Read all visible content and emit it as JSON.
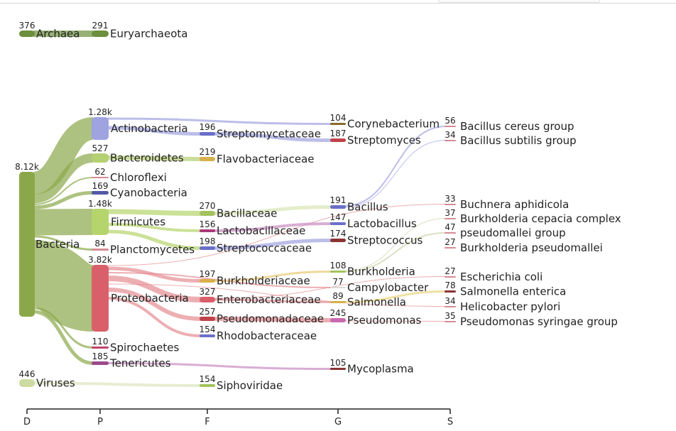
{
  "axis": {
    "levels": [
      {
        "label": "D",
        "x": 38
      },
      {
        "label": "P",
        "x": 141
      },
      {
        "label": "F",
        "x": 292
      },
      {
        "label": "G",
        "x": 476
      },
      {
        "label": "S",
        "x": 634
      }
    ]
  },
  "colors": {
    "archaea": "#6b8f3a",
    "bacteria": "#8aa84a",
    "actinobacteria": "#9fa3e0",
    "bacteroidetes": "#b5cf73",
    "chloroflexi": "#d58a94",
    "cyanobacteria": "#5358a5",
    "firmicutes": "#b5d46b",
    "proteobacteria": "#d9606a",
    "spirochaetes": "#c1436a",
    "tenericutes": "#9c4a8c",
    "viruses": "#ccdba1",
    "family_purple": "#6a6fc8",
    "family_gold": "#d6b04a",
    "family_green": "#a3c25e",
    "family_magenta": "#a8397a",
    "family_red": "#c0424a",
    "family_maroon": "#8a3434"
  },
  "nodes": [
    {
      "id": "archaea",
      "name": "Archaea",
      "value": "376",
      "level": 0,
      "y": 43,
      "h": 9,
      "color": "#6b8f3a"
    },
    {
      "id": "euryarchaeota",
      "name": "Euryarchaeota",
      "value": "291",
      "level": 1,
      "y": 43,
      "h": 9,
      "color": "#6b8f3a"
    },
    {
      "id": "bacteria",
      "name": "Bacteria",
      "value": "8.12k",
      "level": 0,
      "y": 242,
      "h": 204,
      "color": "#8aa84a"
    },
    {
      "id": "actinobacteria",
      "name": "Actinobacteria",
      "value": "1.28k",
      "level": 1,
      "y": 165,
      "h": 32,
      "color": "#9fa3e0"
    },
    {
      "id": "bacteroidetes",
      "name": "Bacteroidetes",
      "value": "527",
      "level": 1,
      "y": 216,
      "h": 13,
      "color": "#b5cf73"
    },
    {
      "id": "chloroflexi",
      "name": "Chloroflexi",
      "value": "62",
      "level": 1,
      "y": 249,
      "h": 2,
      "color": "#d58a94"
    },
    {
      "id": "cyanobacteria",
      "name": "Cyanobacteria",
      "value": "169",
      "level": 1,
      "y": 269,
      "h": 5,
      "color": "#5358a5"
    },
    {
      "id": "firmicutes",
      "name": "Firmicutes",
      "value": "1.48k",
      "level": 1,
      "y": 294,
      "h": 37,
      "color": "#b5d46b"
    },
    {
      "id": "planctomycetes",
      "name": "Planctomycetes",
      "value": "84",
      "level": 1,
      "y": 350,
      "h": 3,
      "color": "#d58a94"
    },
    {
      "id": "proteobacteria",
      "name": "Proteobacteria",
      "value": "3.82k",
      "level": 1,
      "y": 373,
      "h": 94,
      "color": "#d9606a"
    },
    {
      "id": "spirochaetes",
      "name": "Spirochaetes",
      "value": "110",
      "level": 1,
      "y": 488,
      "h": 3,
      "color": "#c1436a"
    },
    {
      "id": "tenericutes",
      "name": "Tenericutes",
      "value": "185",
      "level": 1,
      "y": 509,
      "h": 5,
      "color": "#9c4a8c"
    },
    {
      "id": "viruses",
      "name": "Viruses",
      "value": "446",
      "level": 0,
      "y": 534,
      "h": 11,
      "color": "#ccdba1"
    },
    {
      "id": "streptomycetaceae",
      "name": "Streptomycetaceae",
      "value": "196",
      "level": 2,
      "y": 186,
      "h": 5,
      "color": "#6a6fc8"
    },
    {
      "id": "flavobacteriaceae",
      "name": "Flavobacteriaceae",
      "value": "219",
      "level": 2,
      "y": 221,
      "h": 6,
      "color": "#d6b04a"
    },
    {
      "id": "bacillaceae",
      "name": "Bacillaceae",
      "value": "270",
      "level": 2,
      "y": 297,
      "h": 7,
      "color": "#a3c25e"
    },
    {
      "id": "lactobacillaceae",
      "name": "Lactobacillaceae",
      "value": "156",
      "level": 2,
      "y": 323,
      "h": 4,
      "color": "#a8397a"
    },
    {
      "id": "streptococcaceae",
      "name": "Streptococcaceae",
      "value": "198",
      "level": 2,
      "y": 347,
      "h": 5,
      "color": "#6a6fc8"
    },
    {
      "id": "burkholderiaceae",
      "name": "Burkholderiaceae",
      "value": "197",
      "level": 2,
      "y": 393,
      "h": 5,
      "color": "#d6b04a"
    },
    {
      "id": "enterobacteriaceae",
      "name": "Enterobacteriaceae",
      "value": "327",
      "level": 2,
      "y": 418,
      "h": 8,
      "color": "#d9606a"
    },
    {
      "id": "pseudomonadaceae",
      "name": "Pseudomonadaceae",
      "value": "257",
      "level": 2,
      "y": 446,
      "h": 6,
      "color": "#c0424a"
    },
    {
      "id": "rhodobacteraceae",
      "name": "Rhodobacteraceae",
      "value": "154",
      "level": 2,
      "y": 471,
      "h": 4,
      "color": "#6a6fc8"
    },
    {
      "id": "siphoviridae",
      "name": "Siphoviridae",
      "value": "154",
      "level": 2,
      "y": 541,
      "h": 4,
      "color": "#a3c25e"
    },
    {
      "id": "corynebacterium",
      "name": "Corynebacterium",
      "value": "104",
      "level": 3,
      "y": 173,
      "h": 3,
      "color": "#8a6a2a"
    },
    {
      "id": "streptomyces",
      "name": "Streptomyces",
      "value": "187",
      "level": 3,
      "y": 195,
      "h": 5,
      "color": "#c0424a"
    },
    {
      "id": "bacillus",
      "name": "Bacillus",
      "value": "191",
      "level": 3,
      "y": 289,
      "h": 5,
      "color": "#6a6fc8"
    },
    {
      "id": "lactobacillus",
      "name": "Lactobacillus",
      "value": "147",
      "level": 3,
      "y": 313,
      "h": 4,
      "color": "#6a6fc8"
    },
    {
      "id": "streptococcus",
      "name": "Streptococcus",
      "value": "174",
      "level": 3,
      "y": 336,
      "h": 5,
      "color": "#8a3434"
    },
    {
      "id": "burkholderia",
      "name": "Burkholderia",
      "value": "108",
      "level": 3,
      "y": 381,
      "h": 3,
      "color": "#a3c25e"
    },
    {
      "id": "campylobacter",
      "name": "Campylobacter",
      "value": "77",
      "level": 3,
      "y": 404,
      "h": 2,
      "color": "#d9d9d9"
    },
    {
      "id": "salmonella",
      "name": "Salmonella",
      "value": "89",
      "level": 3,
      "y": 424,
      "h": 3,
      "color": "#d6b04a"
    },
    {
      "id": "pseudomonas",
      "name": "Pseudomonas",
      "value": "245",
      "level": 3,
      "y": 448,
      "h": 6,
      "color": "#c969b0"
    },
    {
      "id": "mycoplasma",
      "name": "Mycoplasma",
      "value": "105",
      "level": 3,
      "y": 518,
      "h": 3,
      "color": "#8a3434"
    },
    {
      "id": "bacillus-cereus",
      "name": "Bacillus cereus group",
      "value": "56",
      "level": 4,
      "y": 177,
      "h": 2,
      "color": "#d58a94"
    },
    {
      "id": "bacillus-subtilis",
      "name": "Bacillus subtilis group",
      "value": "34",
      "level": 4,
      "y": 197,
      "h": 1,
      "color": "#d58a94"
    },
    {
      "id": "buchnera",
      "name": "Buchnera aphidicola",
      "value": "33",
      "level": 4,
      "y": 287,
      "h": 1,
      "color": "#d58a94"
    },
    {
      "id": "burkholderia-cepacia",
      "name": "Burkholderia cepacia complex",
      "value": "37",
      "level": 4,
      "y": 307,
      "h": 1,
      "color": "#d58a94"
    },
    {
      "id": "pseudomallei-group",
      "name": "pseudomallei group",
      "value": "47",
      "level": 4,
      "y": 327,
      "h": 2,
      "color": "#d58a94"
    },
    {
      "id": "burkholderia-pseudomallei",
      "name": "Burkholderia pseudomallei",
      "value": "27",
      "level": 4,
      "y": 348,
      "h": 1,
      "color": "#d58a94"
    },
    {
      "id": "escherichia-coli",
      "name": "Escherichia coli",
      "value": "27",
      "level": 4,
      "y": 389,
      "h": 1,
      "color": "#d58a94"
    },
    {
      "id": "salmonella-enterica",
      "name": "Salmonella enterica",
      "value": "78",
      "level": 4,
      "y": 409,
      "h": 3,
      "color": "#8a3434"
    },
    {
      "id": "helicobacter-pylori",
      "name": "Helicobacter pylori",
      "value": "34",
      "level": 4,
      "y": 431,
      "h": 1,
      "color": "#d58a94"
    },
    {
      "id": "pseudomonas-syringae",
      "name": "Pseudomonas syringae group",
      "value": "35",
      "level": 4,
      "y": 452,
      "h": 1,
      "color": "#d58a94"
    }
  ],
  "links": [
    {
      "from": "archaea",
      "to": "euryarchaeota",
      "fy": 47.5,
      "ty": 47.5,
      "w": 9,
      "color": "#6b8f3a"
    },
    {
      "from": "bacteria",
      "to": "actinobacteria",
      "fy": 258,
      "ty": 181,
      "w": 32,
      "color": "#8aa84a"
    },
    {
      "from": "bacteria",
      "to": "bacteroidetes",
      "fy": 280,
      "ty": 222.5,
      "w": 13,
      "color": "#8aa84a"
    },
    {
      "from": "bacteria",
      "to": "chloroflexi",
      "fy": 288,
      "ty": 250,
      "w": 2,
      "color": "#8aa84a"
    },
    {
      "from": "bacteria",
      "to": "cyanobacteria",
      "fy": 292,
      "ty": 271.5,
      "w": 5,
      "color": "#8aa84a"
    },
    {
      "from": "bacteria",
      "to": "firmicutes",
      "fy": 313,
      "ty": 312.5,
      "w": 37,
      "color": "#8aa84a"
    },
    {
      "from": "bacteria",
      "to": "planctomycetes",
      "fy": 333,
      "ty": 351.5,
      "w": 3,
      "color": "#8aa84a"
    },
    {
      "from": "bacteria",
      "to": "proteobacteria",
      "fy": 385,
      "ty": 420,
      "w": 94,
      "color": "#8aa84a"
    },
    {
      "from": "bacteria",
      "to": "spirochaetes",
      "fy": 434,
      "ty": 489.5,
      "w": 3,
      "color": "#8aa84a"
    },
    {
      "from": "bacteria",
      "to": "tenericutes",
      "fy": 439,
      "ty": 511.5,
      "w": 5,
      "color": "#8aa84a"
    },
    {
      "from": "actinobacteria",
      "to": "streptomycetaceae",
      "fy": 180,
      "ty": 188.5,
      "w": 5,
      "color": "#9fa3e0"
    },
    {
      "from": "actinobacteria",
      "to": "corynebacterium",
      "fy": 167,
      "ty": 174.5,
      "w": 3,
      "color": "#9fa3e0"
    },
    {
      "from": "bacteroidetes",
      "to": "flavobacteriaceae",
      "fy": 222,
      "ty": 224,
      "w": 6,
      "color": "#b5cf73"
    },
    {
      "from": "firmicutes",
      "to": "bacillaceae",
      "fy": 298,
      "ty": 300.5,
      "w": 7,
      "color": "#b5d46b"
    },
    {
      "from": "firmicutes",
      "to": "lactobacillaceae",
      "fy": 316,
      "ty": 325,
      "w": 4,
      "color": "#b5d46b"
    },
    {
      "from": "firmicutes",
      "to": "streptococcaceae",
      "fy": 326,
      "ty": 349.5,
      "w": 5,
      "color": "#b5d46b"
    },
    {
      "from": "proteobacteria",
      "to": "burkholderiaceae",
      "fy": 378,
      "ty": 395.5,
      "w": 5,
      "color": "#e58b91"
    },
    {
      "from": "proteobacteria",
      "to": "enterobacteriaceae",
      "fy": 392,
      "ty": 422,
      "w": 8,
      "color": "#e58b91"
    },
    {
      "from": "proteobacteria",
      "to": "pseudomonadaceae",
      "fy": 408,
      "ty": 449,
      "w": 6,
      "color": "#e58b91"
    },
    {
      "from": "proteobacteria",
      "to": "rhodobacteraceae",
      "fy": 420,
      "ty": 473,
      "w": 4,
      "color": "#e58b91"
    },
    {
      "from": "proteobacteria",
      "to": "campylobacter",
      "fy": 384,
      "ty": 405,
      "w": 2,
      "color": "#e58b91"
    },
    {
      "from": "proteobacteria",
      "to": "buchnera",
      "fy": 374,
      "ty": 287.5,
      "w": 1,
      "color": "#e58b91"
    },
    {
      "from": "proteobacteria",
      "to": "helicobacter-pylori",
      "fy": 400,
      "ty": 431.5,
      "w": 1,
      "color": "#e58b91"
    },
    {
      "from": "tenericutes",
      "to": "mycoplasma",
      "fy": 511.5,
      "ty": 519.5,
      "w": 3,
      "color": "#c98ac0"
    },
    {
      "from": "viruses",
      "to": "siphoviridae",
      "fy": 539.5,
      "ty": 543,
      "w": 4,
      "color": "#dbe6bd"
    },
    {
      "from": "streptomycetaceae",
      "to": "streptomyces",
      "fy": 188.5,
      "ty": 197.5,
      "w": 5,
      "color": "#9fa3e0"
    },
    {
      "from": "bacillaceae",
      "to": "bacillus",
      "fy": 300.5,
      "ty": 291.5,
      "w": 5,
      "color": "#d8e6b3"
    },
    {
      "from": "lactobacillaceae",
      "to": "lactobacillus",
      "fy": 325,
      "ty": 315,
      "w": 4,
      "color": "#c98ac0"
    },
    {
      "from": "streptococcaceae",
      "to": "streptococcus",
      "fy": 349.5,
      "ty": 338.5,
      "w": 5,
      "color": "#9fa3e0"
    },
    {
      "from": "burkholderiaceae",
      "to": "burkholderia",
      "fy": 395.5,
      "ty": 382.5,
      "w": 3,
      "color": "#e8c872"
    },
    {
      "from": "enterobacteriaceae",
      "to": "salmonella",
      "fy": 422,
      "ty": 425.5,
      "w": 3,
      "color": "#e58b91"
    },
    {
      "from": "enterobacteriaceae",
      "to": "escherichia-coli",
      "fy": 420,
      "ty": 389.5,
      "w": 1,
      "color": "#e58b91"
    },
    {
      "from": "pseudomonadaceae",
      "to": "pseudomonas",
      "fy": 449,
      "ty": 451,
      "w": 6,
      "color": "#e58b91"
    },
    {
      "from": "bacillus",
      "to": "bacillus-cereus",
      "fy": 290,
      "ty": 178,
      "w": 2,
      "color": "#9fa3e0"
    },
    {
      "from": "bacillus",
      "to": "bacillus-subtilis",
      "fy": 292,
      "ty": 197.5,
      "w": 1,
      "color": "#9fa3e0"
    },
    {
      "from": "burkholderia",
      "to": "burkholderia-cepacia",
      "fy": 381.5,
      "ty": 307.5,
      "w": 1,
      "color": "#c9d4a8"
    },
    {
      "from": "burkholderia",
      "to": "pseudomallei-group",
      "fy": 382.5,
      "ty": 328,
      "w": 2,
      "color": "#c9d4a8"
    },
    {
      "from": "salmonella",
      "to": "salmonella-enterica",
      "fy": 425.5,
      "ty": 410.5,
      "w": 3,
      "color": "#e8d47a"
    },
    {
      "from": "pseudomonas",
      "to": "pseudomonas-syringae",
      "fy": 452,
      "ty": 452.5,
      "w": 1,
      "color": "#e58b91"
    }
  ]
}
